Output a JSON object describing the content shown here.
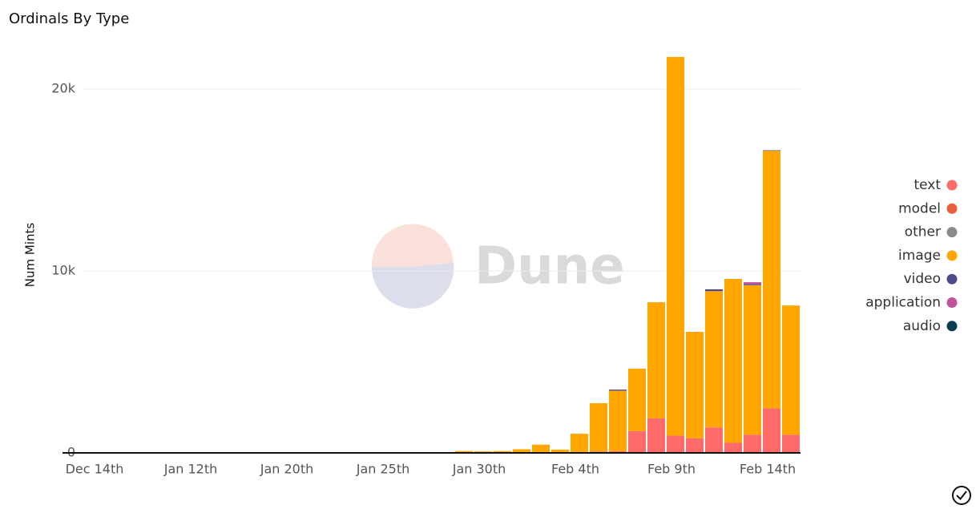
{
  "chart_data": {
    "type": "stacked_bar",
    "title": "Ordinals By Type",
    "y_label": "Num Mints",
    "watermark": "Dune",
    "categories": [
      null,
      "Dec 14th",
      null,
      null,
      null,
      null,
      "Jan 12th",
      null,
      null,
      null,
      null,
      "Jan 20th",
      null,
      null,
      null,
      null,
      "Jan 25th",
      null,
      null,
      null,
      null,
      "Jan 30th",
      null,
      null,
      null,
      null,
      "Feb 4th",
      null,
      null,
      null,
      null,
      "Feb 9th",
      null,
      null,
      null,
      null,
      "Feb 14th",
      null
    ],
    "series": [
      {
        "name": "text",
        "color": "#ff6b6b",
        "values": [
          0,
          0,
          0,
          0,
          0,
          0,
          0,
          0,
          0,
          0,
          0,
          0,
          0,
          0,
          0,
          0,
          0,
          0,
          0,
          0,
          10,
          10,
          10,
          20,
          30,
          20,
          50,
          80,
          100,
          1200,
          1900,
          950,
          800,
          1400,
          550,
          1000,
          2450,
          1000
        ]
      },
      {
        "name": "model",
        "color": "#e8603c",
        "values": [
          0,
          0,
          0,
          0,
          0,
          0,
          0,
          0,
          0,
          0,
          0,
          0,
          0,
          0,
          0,
          0,
          0,
          0,
          0,
          0,
          0,
          0,
          0,
          0,
          0,
          0,
          0,
          0,
          0,
          0,
          0,
          0,
          0,
          0,
          0,
          0,
          0,
          0
        ]
      },
      {
        "name": "other",
        "color": "#8a8a8a",
        "values": [
          0,
          0,
          0,
          0,
          0,
          0,
          0,
          0,
          0,
          0,
          0,
          0,
          0,
          0,
          0,
          0,
          0,
          0,
          0,
          0,
          0,
          0,
          0,
          0,
          0,
          0,
          0,
          0,
          0,
          0,
          0,
          0,
          0,
          0,
          0,
          0,
          0,
          0
        ]
      },
      {
        "name": "image",
        "color": "#ffa600",
        "values": [
          20,
          20,
          20,
          20,
          20,
          20,
          20,
          20,
          20,
          20,
          20,
          20,
          20,
          30,
          30,
          30,
          30,
          30,
          30,
          40,
          90,
          70,
          90,
          180,
          420,
          160,
          1000,
          2650,
          3320,
          3430,
          6380,
          20810,
          5850,
          7490,
          9010,
          8220,
          14150,
          7100
        ]
      },
      {
        "name": "video",
        "color": "#4e4a8c",
        "values": [
          0,
          0,
          0,
          0,
          0,
          0,
          0,
          0,
          0,
          0,
          0,
          0,
          0,
          0,
          0,
          0,
          0,
          0,
          0,
          0,
          0,
          0,
          0,
          0,
          0,
          0,
          0,
          0,
          60,
          0,
          0,
          0,
          0,
          100,
          0,
          60,
          30,
          0
        ]
      },
      {
        "name": "application",
        "color": "#c2519a",
        "values": [
          0,
          0,
          0,
          0,
          0,
          0,
          0,
          0,
          0,
          0,
          0,
          0,
          0,
          0,
          0,
          0,
          0,
          0,
          0,
          0,
          0,
          0,
          0,
          0,
          0,
          0,
          0,
          0,
          0,
          0,
          0,
          0,
          0,
          0,
          0,
          100,
          0,
          0
        ]
      },
      {
        "name": "audio",
        "color": "#0d3d50",
        "values": [
          0,
          0,
          0,
          0,
          0,
          0,
          0,
          0,
          0,
          0,
          0,
          0,
          0,
          0,
          0,
          0,
          0,
          0,
          0,
          0,
          0,
          0,
          0,
          0,
          0,
          0,
          0,
          0,
          0,
          0,
          0,
          0,
          0,
          0,
          0,
          0,
          0,
          0
        ]
      }
    ],
    "ylim": [
      0,
      22000
    ],
    "yticks": [
      0,
      {
        "value": 10000,
        "label": "10k"
      },
      {
        "value": 20000,
        "label": "20k"
      }
    ],
    "grid": true,
    "legend": "right"
  }
}
